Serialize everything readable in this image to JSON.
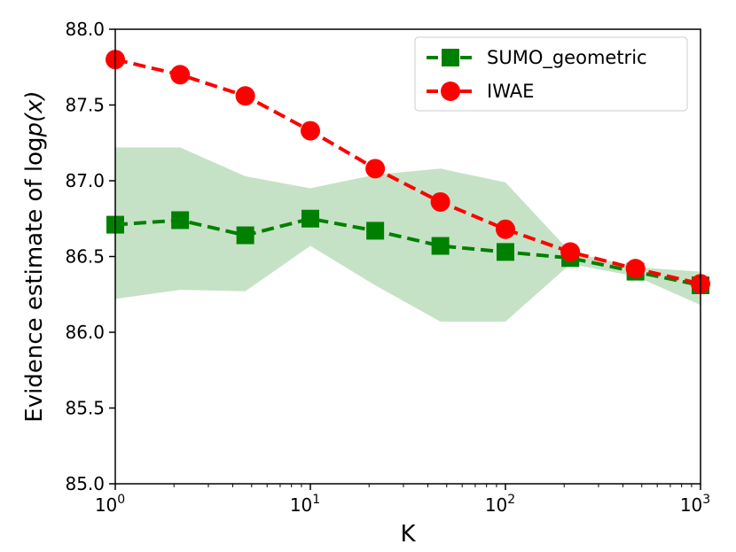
{
  "chart_data": {
    "type": "line",
    "xscale": "log",
    "xlim": [
      1,
      1000
    ],
    "ylim": [
      85.0,
      88.0
    ],
    "xlabel": "K",
    "ylabel_prefix": "Evidence estimate of log",
    "ylabel_math": "p(x)",
    "ylabel_full": "Evidence estimate of logp(x)",
    "yticks": [
      85.0,
      85.5,
      86.0,
      86.5,
      87.0,
      87.5,
      88.0
    ],
    "ytick_labels": [
      "85.0",
      "85.5",
      "86.0",
      "86.5",
      "87.0",
      "87.5",
      "88.0"
    ],
    "xticks": [
      1,
      10,
      100,
      1000
    ],
    "xtick_base": "10",
    "xtick_exponents": [
      "0",
      "1",
      "2",
      "3"
    ],
    "x": [
      1,
      2.15,
      4.64,
      10,
      21.5,
      46.4,
      100,
      215,
      464,
      1000
    ],
    "series": [
      {
        "name": "SUMO_geometric",
        "color": "#008000",
        "marker": "square",
        "values": [
          86.71,
          86.74,
          86.64,
          86.75,
          86.67,
          86.57,
          86.53,
          86.49,
          86.4,
          86.31
        ],
        "band_upper": [
          87.22,
          87.22,
          87.03,
          86.95,
          87.04,
          87.08,
          86.99,
          86.53,
          86.43,
          86.4
        ],
        "band_lower": [
          86.22,
          86.28,
          86.27,
          86.57,
          86.31,
          86.07,
          86.07,
          86.45,
          86.37,
          86.18
        ],
        "band_color": "#c6e2c6"
      },
      {
        "name": "IWAE",
        "color": "#ff0000",
        "marker": "circle",
        "values": [
          87.8,
          87.7,
          87.56,
          87.33,
          87.08,
          86.86,
          86.68,
          86.53,
          86.42,
          86.32
        ]
      }
    ],
    "legend_position": "top-right"
  }
}
